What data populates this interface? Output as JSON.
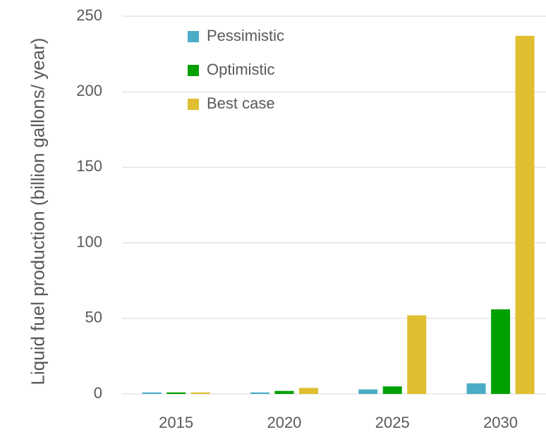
{
  "chart_data": {
    "type": "bar",
    "y_label": "Liquid fuel production (billion gallons/ year)",
    "categories": [
      "2015",
      "2020",
      "2025",
      "2030"
    ],
    "series": [
      {
        "name": "Pessimistic",
        "color": "#4bacc6",
        "values": [
          1,
          1,
          3,
          7
        ]
      },
      {
        "name": "Optimistic",
        "color": "#00a000",
        "values": [
          1,
          2,
          5,
          56
        ]
      },
      {
        "name": "Best case",
        "color": "#dfbf2f",
        "values": [
          1,
          4,
          52,
          237
        ]
      }
    ],
    "ylim": [
      0,
      250
    ],
    "yticks": [
      0,
      50,
      100,
      150,
      200,
      250
    ],
    "grid": true,
    "legend": "top-left"
  }
}
